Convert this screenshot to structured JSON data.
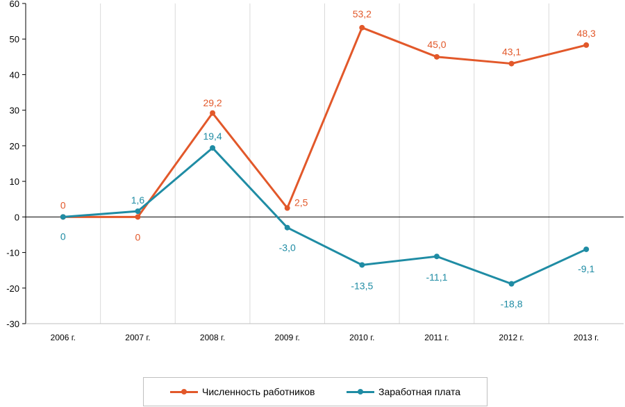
{
  "chart_data": {
    "type": "line",
    "title": "",
    "xlabel": "",
    "ylabel": "",
    "ylim": [
      -30,
      60
    ],
    "yticks": [
      60,
      50,
      40,
      30,
      20,
      10,
      0,
      -10,
      -20,
      -30
    ],
    "categories": [
      "2006 г.",
      "2007 г.",
      "2008 г.",
      "2009 г.",
      "2010 г.",
      "2011 г.",
      "2012 г.",
      "2013 г."
    ],
    "grid": "vertical",
    "legend_position": "bottom",
    "series": [
      {
        "name": "Численность работников",
        "color": "#e2582a",
        "values": [
          0,
          0,
          29.2,
          2.5,
          53.2,
          45.0,
          43.1,
          48.3
        ],
        "labels": [
          "0",
          "0",
          "29,2",
          "2,5",
          "53,2",
          "45,0",
          "43,1",
          "48,3"
        ]
      },
      {
        "name": "Заработная плата",
        "color": "#1f8ca4",
        "values": [
          0,
          1.6,
          19.4,
          -3.0,
          -13.5,
          -11.1,
          -18.8,
          -9.1
        ],
        "labels": [
          "0",
          "1,6",
          "19,4",
          "-3,0",
          "-13,5",
          "-11,1",
          "-18,8",
          "-9,1"
        ]
      }
    ]
  }
}
